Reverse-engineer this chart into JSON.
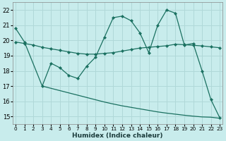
{
  "xlabel": "Humidex (Indice chaleur)",
  "background_color": "#c8ecec",
  "grid_color": "#b0d8d8",
  "line_color": "#1a7060",
  "x_ticks": [
    0,
    1,
    2,
    3,
    4,
    5,
    6,
    7,
    8,
    9,
    10,
    11,
    12,
    13,
    14,
    15,
    16,
    17,
    18,
    19,
    20,
    21,
    22,
    23
  ],
  "y_ticks": [
    15,
    16,
    17,
    18,
    19,
    20,
    21,
    22
  ],
  "ylim": [
    14.5,
    22.5
  ],
  "xlim": [
    -0.3,
    23.3
  ],
  "line1_x": [
    0,
    1,
    3,
    4,
    5,
    6,
    7,
    8,
    9,
    10,
    11,
    12,
    13,
    14,
    15,
    16,
    17,
    18,
    19,
    20,
    21,
    22,
    23
  ],
  "line1_y": [
    20.8,
    19.9,
    17.0,
    18.5,
    18.2,
    17.7,
    17.5,
    18.3,
    18.9,
    20.2,
    21.5,
    21.6,
    21.3,
    20.5,
    19.2,
    21.0,
    22.0,
    21.8,
    19.7,
    19.8,
    18.0,
    16.1,
    14.9
  ],
  "line2_x": [
    0,
    1,
    2,
    3,
    4,
    5,
    6,
    7,
    8,
    9,
    10,
    11,
    12,
    13,
    14,
    15,
    16,
    17,
    18,
    19,
    20,
    21,
    22,
    23
  ],
  "line2_y": [
    19.9,
    19.8,
    19.7,
    19.55,
    19.45,
    19.35,
    19.25,
    19.15,
    19.1,
    19.1,
    19.15,
    19.2,
    19.3,
    19.4,
    19.5,
    19.55,
    19.6,
    19.65,
    19.75,
    19.72,
    19.68,
    19.64,
    19.58,
    19.52
  ],
  "line3_x": [
    3,
    4,
    5,
    6,
    7,
    8,
    9,
    10,
    11,
    12,
    13,
    14,
    15,
    16,
    17,
    18,
    19,
    20,
    21,
    22,
    23
  ],
  "line3_y": [
    17.0,
    16.85,
    16.7,
    16.55,
    16.4,
    16.25,
    16.1,
    15.95,
    15.82,
    15.7,
    15.6,
    15.5,
    15.4,
    15.3,
    15.22,
    15.15,
    15.08,
    15.02,
    14.97,
    14.95,
    14.88
  ]
}
